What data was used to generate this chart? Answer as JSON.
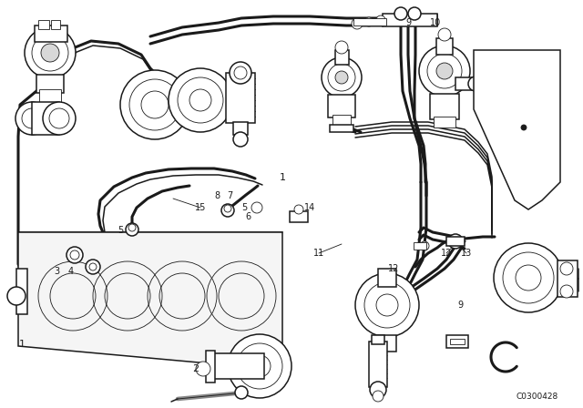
{
  "bg_color": "#ffffff",
  "line_color": "#1a1a1a",
  "fig_width": 6.4,
  "fig_height": 4.48,
  "dpi": 100,
  "catalog_number": "C0300428",
  "lw_thin": 0.6,
  "lw_med": 1.1,
  "lw_thick": 2.2,
  "lw_xthick": 3.2
}
